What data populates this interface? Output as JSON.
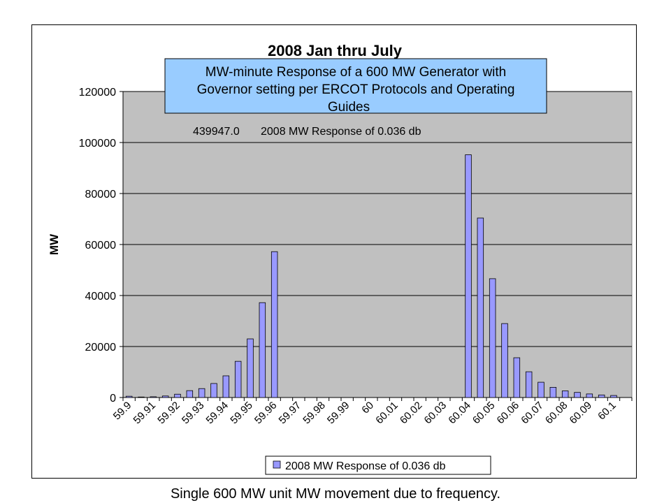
{
  "chart_data": {
    "type": "bar",
    "title": "2008 Jan thru July",
    "subtitle": "MW-minute Response of a 600 MW Generator with Governor setting per ERCOT Protocols and Operating Guides",
    "subtitle_lines": [
      "MW-minute Response of a 600 MW Generator with",
      "Governor setting per ERCOT Protocols and Operating",
      "Guides"
    ],
    "annotation_value": "439947.0",
    "annotation_label": "2008 MW Response of 0.036 db",
    "xlabel": "",
    "ylabel": "MW",
    "ylim": [
      0,
      120000
    ],
    "yticks": [
      0,
      20000,
      40000,
      60000,
      80000,
      100000,
      120000
    ],
    "grid": true,
    "legend_position": "bottom",
    "bar_color": "#9999ff",
    "plot_background": "#c0c0c0",
    "subtitle_box_color": "#99ccff",
    "categories": [
      "59.9",
      "59.905",
      "59.91",
      "59.915",
      "59.92",
      "59.925",
      "59.93",
      "59.935",
      "59.94",
      "59.945",
      "59.95",
      "59.955",
      "59.96",
      "59.965",
      "59.97",
      "59.975",
      "59.98",
      "59.985",
      "59.99",
      "59.995",
      "60",
      "60.005",
      "60.01",
      "60.015",
      "60.02",
      "60.025",
      "60.03",
      "60.035",
      "60.04",
      "60.045",
      "60.05",
      "60.055",
      "60.06",
      "60.065",
      "60.07",
      "60.075",
      "60.08",
      "60.085",
      "60.09",
      "60.095",
      "60.1",
      "60.105"
    ],
    "tick_labels": [
      "59.9",
      "59.91",
      "59.92",
      "59.93",
      "59.94",
      "59.95",
      "59.96",
      "59.97",
      "59.98",
      "59.99",
      "60",
      "60.01",
      "60.02",
      "60.03",
      "60.04",
      "60.05",
      "60.06",
      "60.07",
      "60.08",
      "60.09",
      "60.1"
    ],
    "series": [
      {
        "name": "2008 MW Response of 0.036 db",
        "values": [
          500,
          200,
          300,
          600,
          1300,
          2700,
          3500,
          5500,
          8500,
          14200,
          23000,
          37200,
          57200,
          0,
          0,
          0,
          0,
          0,
          0,
          0,
          0,
          0,
          0,
          0,
          0,
          0,
          0,
          0,
          95200,
          70400,
          46600,
          29000,
          15600,
          10100,
          6000,
          4000,
          2600,
          2000,
          1400,
          1000,
          800,
          0
        ]
      }
    ]
  },
  "caption": "Single 600 MW unit MW movement due to frequency."
}
